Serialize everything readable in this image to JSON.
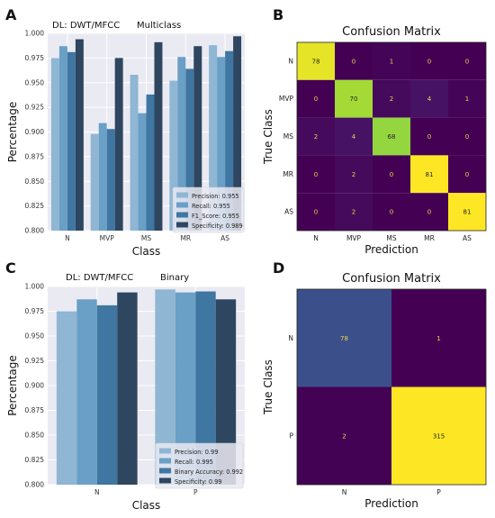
{
  "panel_letters": [
    "A",
    "B",
    "C",
    "D"
  ],
  "chart_data": [
    {
      "panel": "A",
      "type": "bar",
      "title_left": "DL: DWT/MFCC",
      "title_right": "Multiclass",
      "xlabel": "Class",
      "ylabel": "Percentage",
      "ylim": [
        0.8,
        1.0
      ],
      "yticks": [
        "0.800",
        "0.825",
        "0.850",
        "0.875",
        "0.900",
        "0.925",
        "0.950",
        "0.975",
        "1.000"
      ],
      "categories": [
        "N",
        "MVP",
        "MS",
        "MR",
        "AS"
      ],
      "series": [
        {
          "name": "Precision: 0.955",
          "color": "#8fb6d3",
          "values": [
            0.975,
            0.898,
            0.958,
            0.952,
            0.988
          ]
        },
        {
          "name": "Recall: 0.955",
          "color": "#6a9fc6",
          "values": [
            0.987,
            0.909,
            0.919,
            0.976,
            0.976
          ]
        },
        {
          "name": "F1_Score: 0.955",
          "color": "#3f76a2",
          "values": [
            0.981,
            0.903,
            0.938,
            0.964,
            0.982
          ]
        },
        {
          "name": "Specificity: 0.989",
          "color": "#2e465f",
          "values": [
            0.994,
            0.975,
            0.991,
            0.987,
            0.997
          ]
        }
      ],
      "legend_position": "bottom-right",
      "grid": true
    },
    {
      "panel": "B",
      "type": "heatmap",
      "title": "Confusion Matrix",
      "xlabel": "Prediction",
      "ylabel": "True Class",
      "labels": [
        "N",
        "MVP",
        "MS",
        "MR",
        "AS"
      ],
      "matrix": [
        [
          78,
          0,
          1,
          0,
          0
        ],
        [
          0,
          70,
          2,
          4,
          1
        ],
        [
          2,
          4,
          68,
          0,
          0
        ],
        [
          0,
          2,
          0,
          81,
          0
        ],
        [
          0,
          2,
          0,
          0,
          81
        ]
      ]
    },
    {
      "panel": "C",
      "type": "bar",
      "title_left": "DL: DWT/MFCC",
      "title_right": "Binary",
      "xlabel": "Class",
      "ylabel": "Percentage",
      "ylim": [
        0.8,
        1.0
      ],
      "yticks": [
        "0.800",
        "0.825",
        "0.850",
        "0.875",
        "0.900",
        "0.925",
        "0.950",
        "0.975",
        "1.000"
      ],
      "categories": [
        "N",
        "P"
      ],
      "series": [
        {
          "name": "Precision: 0.99",
          "color": "#8fb6d3",
          "values": [
            0.975,
            0.997
          ]
        },
        {
          "name": "Recall: 0.995",
          "color": "#6a9fc6",
          "values": [
            0.987,
            0.994
          ]
        },
        {
          "name": "Binary Accuracy: 0.992",
          "color": "#3f76a2",
          "values": [
            0.981,
            0.995
          ]
        },
        {
          "name": "Specificity: 0.99",
          "color": "#2e465f",
          "values": [
            0.994,
            0.987
          ]
        }
      ],
      "legend_position": "bottom-right",
      "grid": true
    },
    {
      "panel": "D",
      "type": "heatmap",
      "title": "Confusion Matrix",
      "xlabel": "Prediction",
      "ylabel": "True Class",
      "labels": [
        "N",
        "P"
      ],
      "matrix": [
        [
          78,
          1
        ],
        [
          2,
          315
        ]
      ]
    }
  ]
}
